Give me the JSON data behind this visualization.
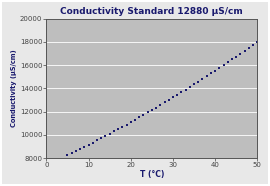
{
  "title": "Conductivity Standard 12880 μS/cm",
  "xlabel": "T (°C)",
  "ylabel": "Conductivity (μS/cm)",
  "xlim": [
    0,
    50
  ],
  "ylim": [
    8000,
    20000
  ],
  "xticks": [
    0,
    10,
    20,
    30,
    40,
    50
  ],
  "yticks": [
    8000,
    10000,
    12000,
    14000,
    16000,
    18000,
    20000
  ],
  "plot_bg_color": "#bebebe",
  "outer_bg_color": "#e8e8e8",
  "border_color": "#4444aa",
  "dot_color": "#1a1a6e",
  "title_color": "#1a1a6e",
  "label_color": "#1a1a6e",
  "tick_color": "#444444",
  "grid_color": "#ffffff",
  "temp_data": [
    5,
    6,
    7,
    8,
    9,
    10,
    11,
    12,
    13,
    14,
    15,
    16,
    17,
    18,
    19,
    20,
    21,
    22,
    23,
    24,
    25,
    26,
    27,
    28,
    29,
    30,
    31,
    32,
    33,
    34,
    35,
    36,
    37,
    38,
    39,
    40,
    41,
    42,
    43,
    44,
    45,
    46,
    47,
    48,
    49,
    50
  ],
  "cond_data": [
    8220,
    8395,
    8575,
    8760,
    8945,
    9130,
    9320,
    9510,
    9700,
    9895,
    10090,
    10285,
    10485,
    10685,
    10885,
    11085,
    11290,
    11500,
    11710,
    11920,
    12130,
    12345,
    12560,
    12780,
    13000,
    13220,
    13445,
    13670,
    13895,
    14120,
    14350,
    14580,
    14810,
    15045,
    15280,
    15515,
    15755,
    15995,
    16235,
    16480,
    16725,
    16970,
    17220,
    17470,
    17725,
    17980
  ]
}
